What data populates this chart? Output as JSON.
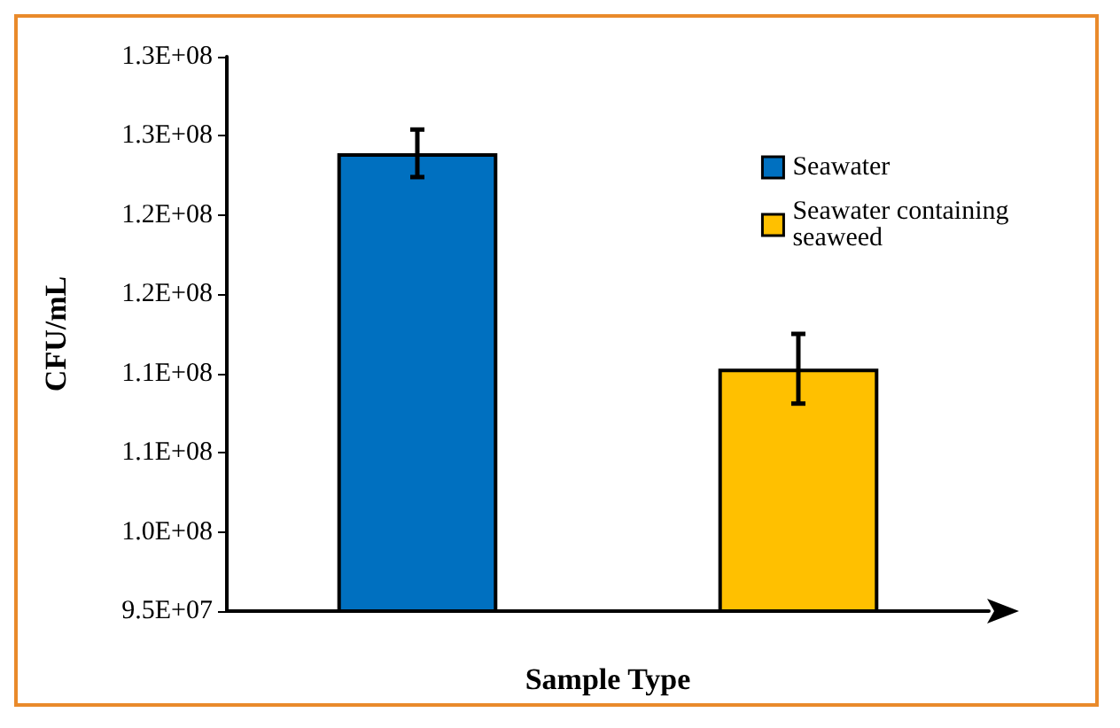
{
  "chart_data": {
    "type": "bar",
    "xlabel": "Sample Type",
    "ylabel": "CFU/mL",
    "categories": [
      null,
      null
    ],
    "series": [
      {
        "name": "Seawater",
        "color": "#0070c0",
        "values": [
          123900000,
          null
        ],
        "errors": [
          1500000,
          null
        ]
      },
      {
        "name": "Seawater containing seaweed",
        "color": "#ffc000",
        "values": [
          null,
          110300000
        ],
        "errors": [
          null,
          2200000
        ]
      }
    ],
    "ylim": [
      95000000,
      130000000
    ],
    "yticks": [
      {
        "value": 95000000,
        "label": "9.5E+07"
      },
      {
        "value": 100000000,
        "label": "1.0E+08"
      },
      {
        "value": 105000000,
        "label": "1.1E+08"
      },
      {
        "value": 110000000,
        "label": "1.1E+08"
      },
      {
        "value": 115000000,
        "label": "1.2E+08"
      },
      {
        "value": 120000000,
        "label": "1.2E+08"
      },
      {
        "value": 125000000,
        "label": "1.3E+08"
      },
      {
        "value": 130000000,
        "label": "1.3E+08"
      }
    ],
    "grid": false,
    "legend": "top right"
  }
}
